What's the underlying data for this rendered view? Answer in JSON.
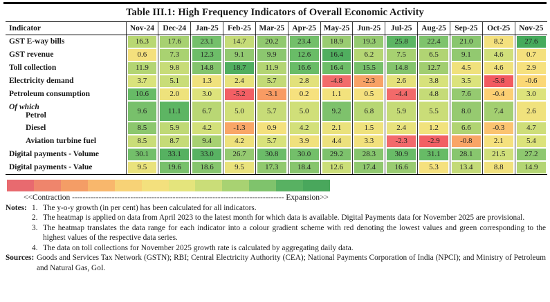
{
  "title": "Table III.1: High Frequency Indicators of Overall Economic Activity",
  "table": {
    "header": [
      "Indicator",
      "Nov-24",
      "Dec-24",
      "Jan-25",
      "Feb-25",
      "Mar-25",
      "Apr-25",
      "May-25",
      "Jun-25",
      "Jul-25",
      "Aug-25",
      "Sep-25",
      "Oct-25",
      "Nov-25"
    ],
    "rows": [
      {
        "label": "GST E-way bills",
        "prefix": "",
        "indent": 0,
        "values": [
          "16.3",
          "17.6",
          "23.1",
          "14.7",
          "20.2",
          "23.4",
          "18.9",
          "19.3",
          "25.8",
          "22.4",
          "21.0",
          "8.2",
          "27.6"
        ],
        "colors": [
          "#b9d873",
          "#a7d171",
          "#74c06b",
          "#c5dc78",
          "#91c96f",
          "#73bf6a",
          "#99cc71",
          "#95ca70",
          "#5cb563",
          "#7ec36c",
          "#89c66e",
          "#f4e17e",
          "#45aa5b"
        ]
      },
      {
        "label": "GST revenue",
        "prefix": "",
        "indent": 0,
        "values": [
          "0.6",
          "7.3",
          "12.3",
          "9.1",
          "9.9",
          "12.6",
          "16.4",
          "6.2",
          "7.5",
          "6.5",
          "9.1",
          "4.6",
          "0.7"
        ],
        "colors": [
          "#f4e07d",
          "#a9d271",
          "#6dbd68",
          "#92c970",
          "#8cc76f",
          "#69bc67",
          "#50ae5f",
          "#b5d674",
          "#a7d171",
          "#b1d473",
          "#92c970",
          "#d0df7a",
          "#f4e07d"
        ]
      },
      {
        "label": "Toll collection",
        "prefix": "",
        "indent": 0,
        "values": [
          "11.9",
          "9.8",
          "14.8",
          "18.7",
          "11.9",
          "16.6",
          "16.4",
          "15.5",
          "14.8",
          "12.7",
          "4.5",
          "4.6",
          "2.9"
        ],
        "colors": [
          "#b3d573",
          "#c7dc78",
          "#84c46d",
          "#50ae5f",
          "#b3d573",
          "#69bc67",
          "#6dbd68",
          "#77c06a",
          "#84c46d",
          "#a1ce70",
          "#f0e17c",
          "#f0e17c",
          "#f6e17e"
        ]
      },
      {
        "label": "Electricity demand",
        "prefix": "",
        "indent": 0,
        "values": [
          "3.7",
          "5.1",
          "1.3",
          "2.4",
          "5.7",
          "2.8",
          "-4.8",
          "-2.3",
          "2.6",
          "3.8",
          "3.5",
          "-5.8",
          "-0.6"
        ],
        "colors": [
          "#d9e37c",
          "#c9dd78",
          "#f0e27d",
          "#e7e27c",
          "#c3da76",
          "#e2e17b",
          "#f26b6b",
          "#f8a266",
          "#e5e17b",
          "#d7e27b",
          "#dbe37c",
          "#f25a60",
          "#fbd876"
        ]
      },
      {
        "label": "Petroleum consumption",
        "prefix": "",
        "indent": 0,
        "values": [
          "10.6",
          "2.0",
          "3.0",
          "-5.2",
          "-3.1",
          "0.2",
          "1.1",
          "0.5",
          "-4.4",
          "4.8",
          "7.6",
          "-0.4",
          "3.0"
        ],
        "colors": [
          "#67bb66",
          "#eee27c",
          "#dde37b",
          "#f25f64",
          "#f89b63",
          "#f6e17e",
          "#f2e27d",
          "#f5e17e",
          "#f26a6a",
          "#c5db77",
          "#95ca70",
          "#fccf73",
          "#dde37b"
        ]
      },
      {
        "label": "Petrol",
        "prefix": "Of which",
        "indent": 1,
        "values": [
          "9.6",
          "11.1",
          "6.7",
          "5.0",
          "5.7",
          "5.0",
          "9.2",
          "6.8",
          "5.9",
          "5.5",
          "8.0",
          "7.4",
          "2.6"
        ],
        "colors": [
          "#78c06b",
          "#5db563",
          "#b9d774",
          "#d0df79",
          "#c7dc78",
          "#d0df79",
          "#7ec26c",
          "#b7d774",
          "#c5db77",
          "#cadd78",
          "#96ca70",
          "#a3cf71",
          "#f0e27d"
        ]
      },
      {
        "label": "Diesel",
        "prefix": "",
        "indent": 1,
        "values": [
          "8.5",
          "5.9",
          "4.2",
          "-1.3",
          "0.9",
          "4.2",
          "2.1",
          "1.5",
          "2.4",
          "1.2",
          "6.6",
          "-0.3",
          "4.7"
        ],
        "colors": [
          "#8cc76e",
          "#bfd975",
          "#d3e07a",
          "#f9a667",
          "#f4e17d",
          "#d3e07a",
          "#eae27c",
          "#efe27d",
          "#e8e27c",
          "#f1e27d",
          "#b1d473",
          "#fbc370",
          "#cede79"
        ]
      },
      {
        "label": "Aviation turbine fuel",
        "prefix": "",
        "indent": 1,
        "values": [
          "8.5",
          "8.7",
          "9.4",
          "4.2",
          "5.7",
          "3.9",
          "4.4",
          "3.3",
          "-2.3",
          "-2.9",
          "-0.8",
          "2.1",
          "5.4"
        ],
        "colors": [
          "#c9dd78",
          "#c5db77",
          "#a7d171",
          "#eee17c",
          "#d8e27b",
          "#f0e17d",
          "#ece17c",
          "#f2e17d",
          "#f3696c",
          "#f25f64",
          "#f9a566",
          "#f5e17e",
          "#dce37b"
        ]
      },
      {
        "label": "Digital payments - Volume",
        "prefix": "",
        "indent": 0,
        "values": [
          "30.1",
          "33.1",
          "33.0",
          "26.7",
          "30.8",
          "30.0",
          "29.2",
          "28.3",
          "30.9",
          "31.1",
          "28.1",
          "21.5",
          "27.2"
        ],
        "colors": [
          "#73bf6a",
          "#56b161",
          "#58b262",
          "#95ca70",
          "#6bbc68",
          "#73bf6a",
          "#7dc26c",
          "#86c56d",
          "#69bc67",
          "#67bb66",
          "#88c66e",
          "#d0df7a",
          "#8ec86f"
        ]
      },
      {
        "label": "Digital payments - Value",
        "prefix": "",
        "indent": 0,
        "values": [
          "9.5",
          "19.6",
          "18.6",
          "9.5",
          "17.3",
          "18.4",
          "12.6",
          "17.4",
          "16.6",
          "5.3",
          "13.4",
          "8.8",
          "14.9"
        ],
        "colors": [
          "#e9e27c",
          "#78c06b",
          "#86c56d",
          "#e9e27c",
          "#91c96f",
          "#87c56d",
          "#cbde78",
          "#90c86f",
          "#99cb71",
          "#f5e17e",
          "#c3da77",
          "#f1e17d",
          "#b3d573"
        ]
      }
    ]
  },
  "legend": {
    "segments": [
      "#e86a6f",
      "#ef856c",
      "#f49d66",
      "#f8b76c",
      "#f7d276",
      "#f3e07d",
      "#e4e47c",
      "#cadd78",
      "#a8d272",
      "#7fc36c",
      "#58b162",
      "#49a75c"
    ],
    "caption_left": "<<Contraction",
    "caption_dashes": "--------------------------------------------------------------------------------",
    "caption_right": "Expansion>>"
  },
  "notes": {
    "label": "Notes:",
    "items": [
      {
        "num": "1.",
        "text": "The y-o-y growth (in per cent) has been calculated for all indicators.",
        "justify": false
      },
      {
        "num": "2.",
        "text": "The heatmap is applied on data from April 2023 to the latest month for which data is available. Digital Payments data for November 2025 are provisional.",
        "justify": true
      },
      {
        "num": "3.",
        "text": "The heatmap translates the data range for each indicator into a colour gradient scheme with red denoting the lowest values and green corresponding to the highest values of the respective data series.",
        "justify": true
      },
      {
        "num": "4.",
        "text": "The data on toll collections for November 2025 growth rate is calculated by aggregating daily data.",
        "justify": false
      }
    ],
    "sources_label": "Sources:",
    "sources_text": "Goods and Services Tax Network (GSTN); RBI; Central Electricity Authority (CEA); National Payments Corporation of India (NPCI); and Ministry of Petroleum and Natural Gas, GoI."
  }
}
